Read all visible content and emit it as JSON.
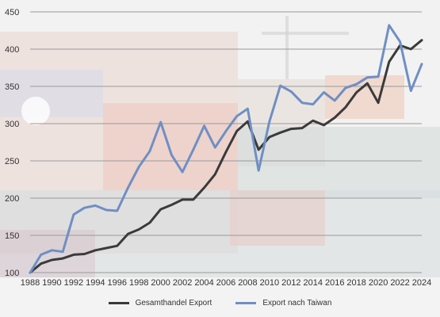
{
  "chart_data": {
    "type": "line",
    "title": "",
    "xlabel": "",
    "ylabel": "",
    "x": [
      1988,
      1989,
      1990,
      1991,
      1992,
      1993,
      1994,
      1995,
      1996,
      1997,
      1998,
      1999,
      2000,
      2001,
      2002,
      2003,
      2004,
      2005,
      2006,
      2007,
      2008,
      2009,
      2010,
      2011,
      2012,
      2013,
      2014,
      2015,
      2016,
      2017,
      2018,
      2019,
      2020,
      2021,
      2022,
      2023,
      2024
    ],
    "xticks": [
      "1988",
      "1990",
      "1992",
      "1994",
      "1996",
      "1998",
      "2000",
      "2002",
      "2004",
      "2006",
      "2008",
      "2010",
      "2012",
      "2014",
      "2016",
      "2018",
      "2020",
      "2022",
      "2024"
    ],
    "ylim": [
      100,
      450
    ],
    "yticks": [
      "100",
      "150",
      "200",
      "250",
      "300",
      "350",
      "400",
      "450"
    ],
    "grid": true,
    "legend_position": "bottom",
    "series": [
      {
        "name": "Gesamthandel Export",
        "color": "#3a3a3a",
        "values": [
          100,
          112,
          117,
          119,
          124,
          125,
          130,
          133,
          136,
          152,
          158,
          167,
          185,
          191,
          198,
          198,
          214,
          232,
          262,
          290,
          303,
          265,
          282,
          288,
          293,
          294,
          304,
          298,
          308,
          322,
          342,
          354,
          328,
          383,
          405,
          400,
          412
        ]
      },
      {
        "name": "Export nach Taiwan",
        "color": "#6f8fc4",
        "values": [
          100,
          124,
          130,
          128,
          178,
          187,
          190,
          184,
          183,
          214,
          242,
          263,
          302,
          258,
          235,
          265,
          297,
          268,
          290,
          310,
          320,
          237,
          303,
          351,
          343,
          328,
          326,
          342,
          331,
          348,
          353,
          362,
          363,
          432,
          410,
          344,
          380
        ]
      }
    ]
  }
}
